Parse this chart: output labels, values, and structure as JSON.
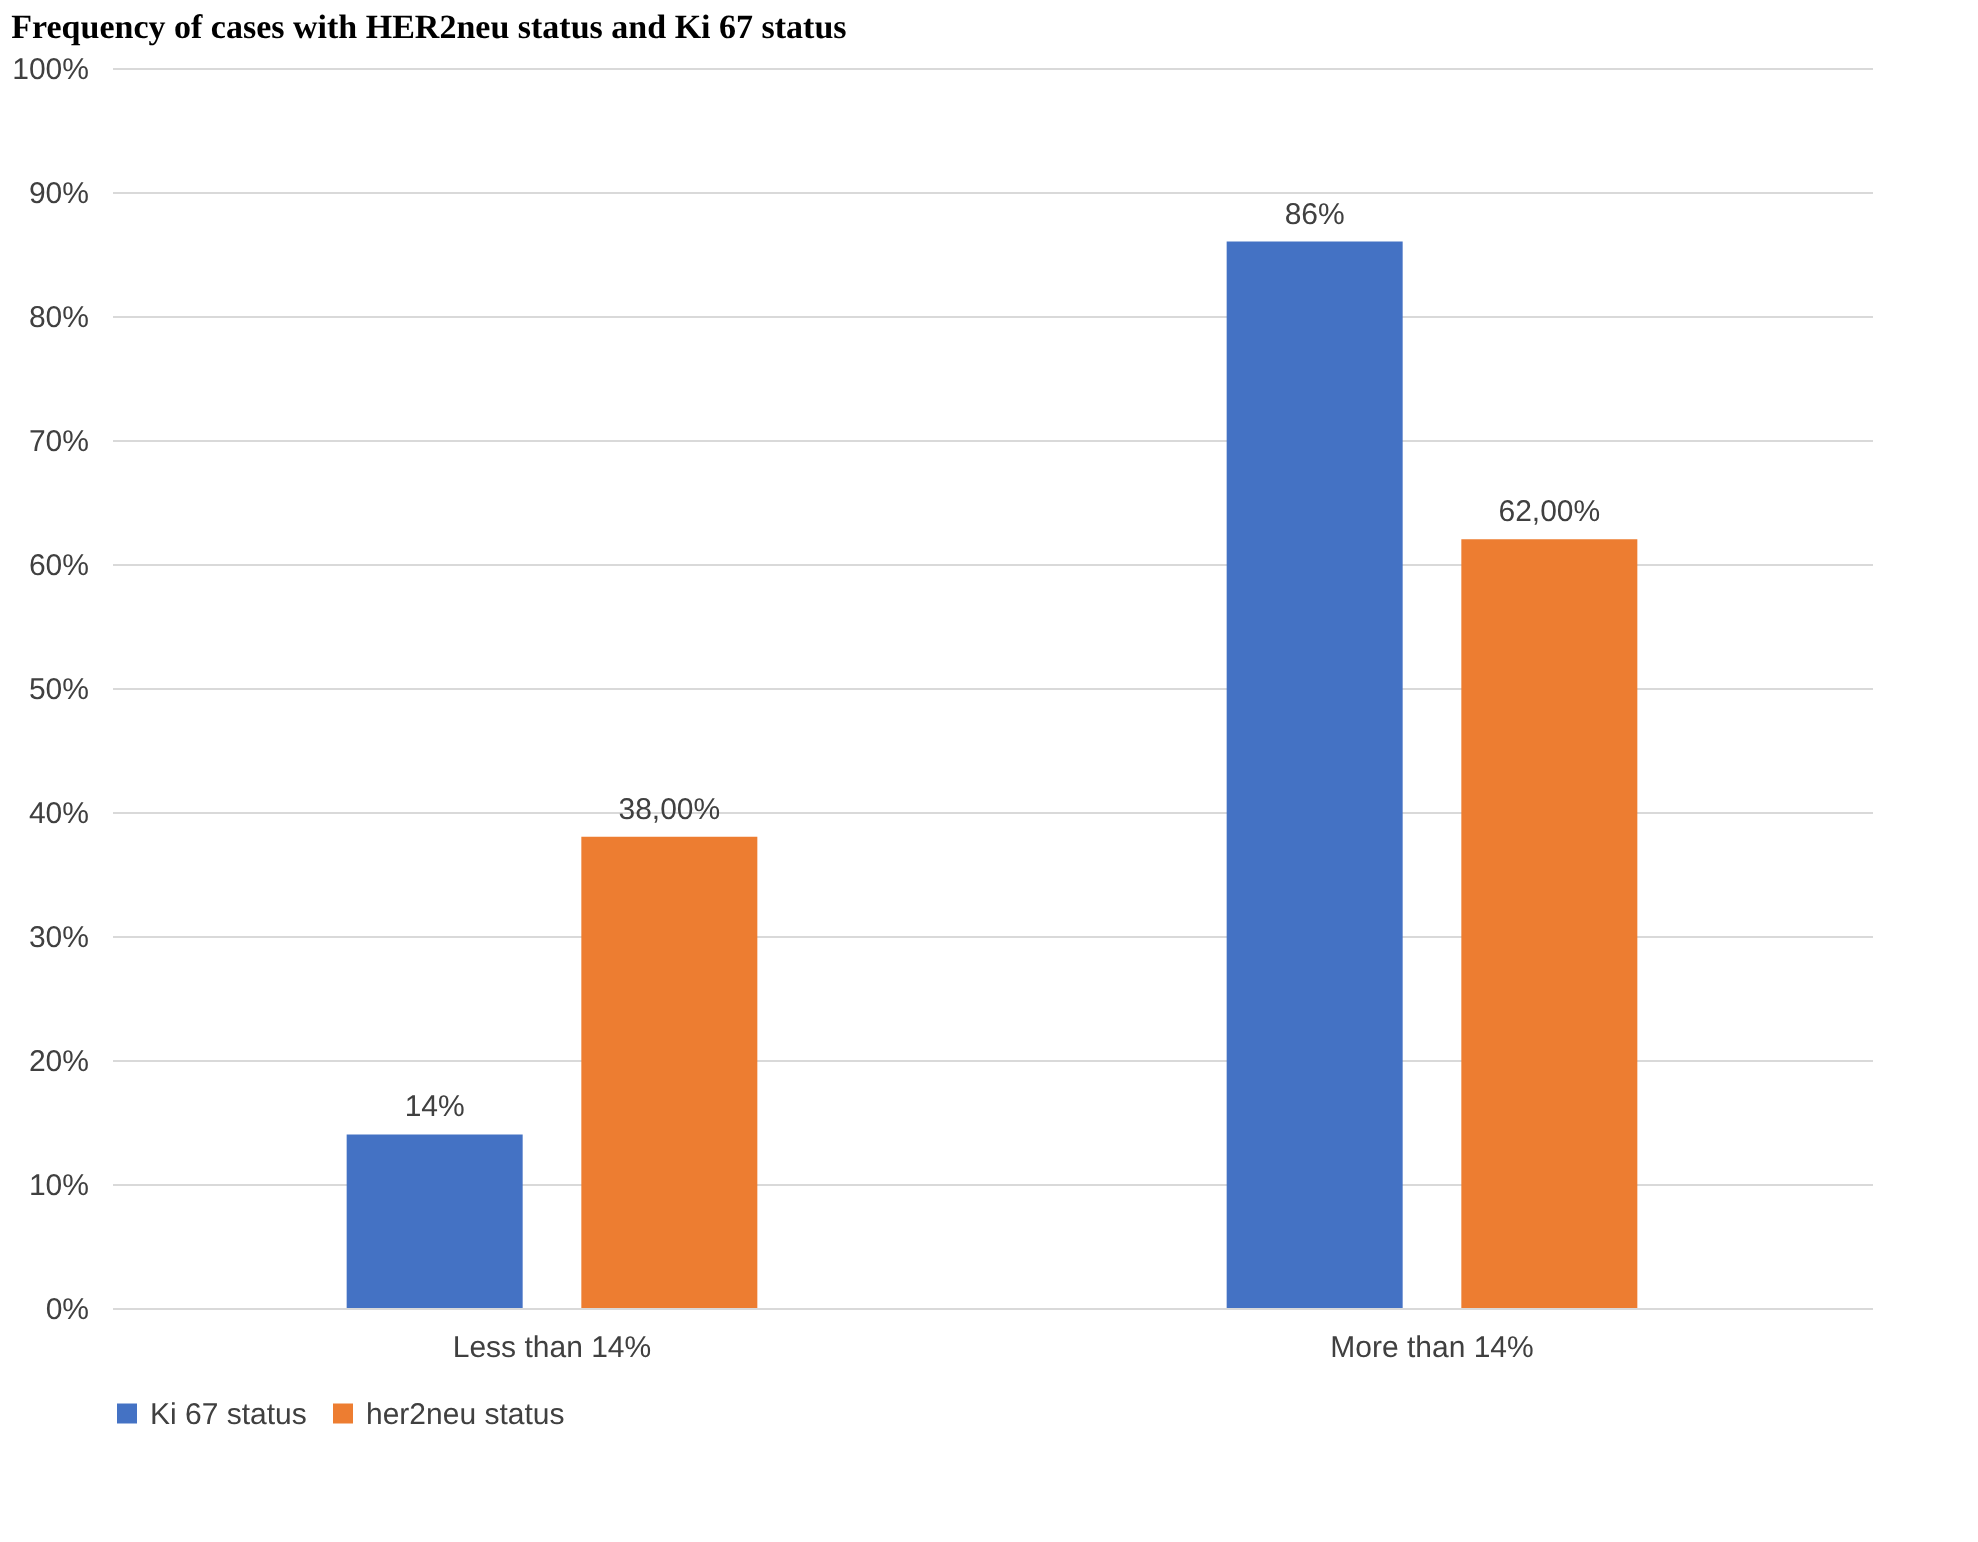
{
  "chart_data": {
    "type": "bar",
    "title": "Frequency of cases with HER2neu status and Ki 67 status",
    "categories": [
      "Less than 14%",
      "More than 14%"
    ],
    "series": [
      {
        "name": "Ki 67 status",
        "color": "#4472c4",
        "values": [
          14,
          86
        ],
        "value_labels": [
          "14%",
          "86%"
        ]
      },
      {
        "name": "her2neu status",
        "color": "#ed7d31",
        "values": [
          38,
          62
        ],
        "value_labels": [
          "38,00%",
          "62,00%"
        ]
      }
    ],
    "ylim": [
      0,
      100
    ],
    "yticks": [
      {
        "value": 0,
        "label": "0%"
      },
      {
        "value": 10,
        "label": "10%"
      },
      {
        "value": 20,
        "label": "20%"
      },
      {
        "value": 30,
        "label": "30%"
      },
      {
        "value": 40,
        "label": "40%"
      },
      {
        "value": 50,
        "label": "50%"
      },
      {
        "value": 60,
        "label": "60%"
      },
      {
        "value": 70,
        "label": "70%"
      },
      {
        "value": 80,
        "label": "80%"
      },
      {
        "value": 90,
        "label": "90%"
      },
      {
        "value": 100,
        "label": "100%"
      }
    ],
    "grid": "y",
    "legend": "bottom"
  }
}
